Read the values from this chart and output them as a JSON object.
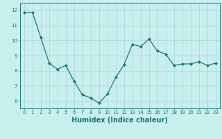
{
  "xlabel": "Humidex (Indice chaleur)",
  "x": [
    0,
    1,
    2,
    3,
    4,
    5,
    6,
    7,
    8,
    9,
    10,
    11,
    12,
    13,
    14,
    15,
    16,
    17,
    18,
    19,
    20,
    21,
    22,
    23
  ],
  "y": [
    11.85,
    11.85,
    10.2,
    8.5,
    8.1,
    8.35,
    7.3,
    6.4,
    6.2,
    5.85,
    6.45,
    7.55,
    8.4,
    9.75,
    9.6,
    10.1,
    9.3,
    9.1,
    8.35,
    8.45,
    8.45,
    8.6,
    8.35,
    8.5
  ],
  "line_color": "#1a7a6e",
  "marker": "D",
  "marker_size": 2,
  "bg_color": "#c8eeee",
  "grid_color": "#aad4d4",
  "tick_color": "#1a7a6e",
  "label_color": "#1a7a6e",
  "ylim": [
    5.5,
    12.5
  ],
  "yticks": [
    6,
    7,
    8,
    9,
    10,
    11,
    12
  ],
  "xlim": [
    -0.5,
    23.5
  ],
  "xticks": [
    0,
    1,
    2,
    3,
    4,
    5,
    6,
    7,
    8,
    9,
    10,
    11,
    12,
    13,
    14,
    15,
    16,
    17,
    18,
    19,
    20,
    21,
    22,
    23
  ],
  "xlabel_fontsize": 7,
  "tick_fontsize": 5,
  "lw": 0.9
}
